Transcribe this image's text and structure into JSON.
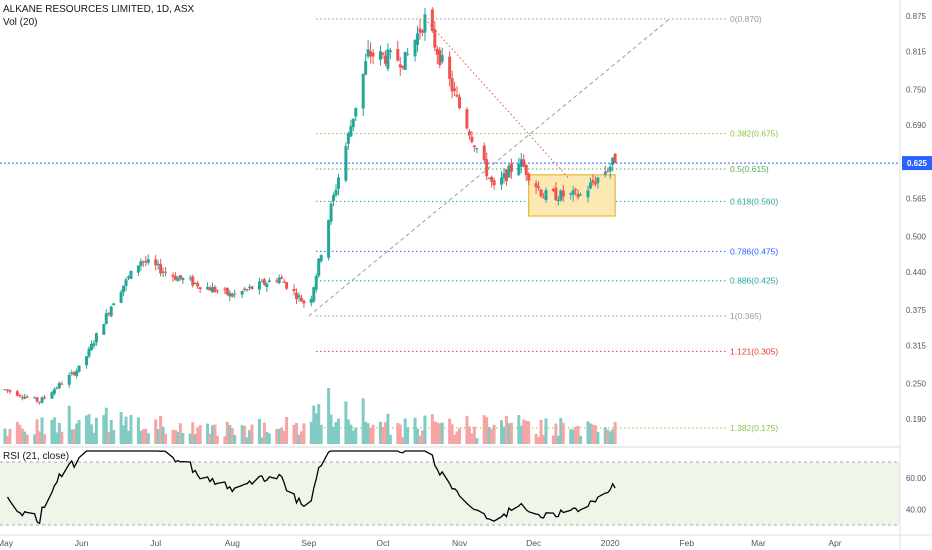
{
  "header": {
    "symbol_line": "ALKANE RESOURCES LIMITED, 1D, ASX",
    "volume_label": "Vol (20)"
  },
  "rsi": {
    "label": "RSI (21, close)",
    "ticks": [
      "60.00",
      "40.00"
    ],
    "upper_band": 70,
    "lower_band": 30
  },
  "price_axis": {
    "ticks": [
      "0.875",
      "0.815",
      "0.750",
      "0.690",
      "0.625",
      "0.565",
      "0.500",
      "0.440",
      "0.375",
      "0.315",
      "0.250",
      "0.190"
    ],
    "last_price": "0.625"
  },
  "time_axis": {
    "ticks": [
      "May",
      "Jun",
      "Jul",
      "Aug",
      "Sep",
      "Oct",
      "Nov",
      "Dec",
      "2020",
      "Feb",
      "Mar",
      "Apr"
    ]
  },
  "colors": {
    "up": "#26a69a",
    "down": "#ef5350",
    "up_vol": "#80cbc4",
    "down_vol": "#f5a6a4",
    "vol_ma": "#f4a261",
    "rsi_line": "#000000",
    "rsi_bg": "#eef6ea",
    "box_fill": "#fce8b2",
    "box_border": "#e6a91a"
  },
  "chart_data": {
    "type": "candlestick",
    "title": "ALKANE RESOURCES LIMITED, 1D, ASX",
    "x_start": "2019-05",
    "x_end": "2020-04",
    "ylim": [
      0.16,
      0.89
    ],
    "ohlc_anchors": [
      {
        "date": "2019-05-01",
        "close": 0.24
      },
      {
        "date": "2019-05-15",
        "close": 0.22
      },
      {
        "date": "2019-06-01",
        "close": 0.28
      },
      {
        "date": "2019-06-15",
        "close": 0.4
      },
      {
        "date": "2019-06-25",
        "close": 0.46
      },
      {
        "date": "2019-07-10",
        "close": 0.43
      },
      {
        "date": "2019-08-01",
        "close": 0.4
      },
      {
        "date": "2019-08-20",
        "close": 0.43
      },
      {
        "date": "2019-09-01",
        "close": 0.38
      },
      {
        "date": "2019-09-10",
        "close": 0.55
      },
      {
        "date": "2019-09-25",
        "close": 0.81
      },
      {
        "date": "2019-10-10",
        "close": 0.8
      },
      {
        "date": "2019-10-18",
        "close": 0.87
      },
      {
        "date": "2019-11-01",
        "close": 0.72
      },
      {
        "date": "2019-11-15",
        "close": 0.58
      },
      {
        "date": "2019-11-25",
        "close": 0.63
      },
      {
        "date": "2019-12-05",
        "close": 0.57
      },
      {
        "date": "2019-12-20",
        "close": 0.57
      },
      {
        "date": "2020-01-02",
        "close": 0.625
      }
    ],
    "fibonacci": [
      {
        "label": "0(0.870)",
        "value": 0.87,
        "color": "#999999"
      },
      {
        "label": "0.382(0.675)",
        "value": 0.675,
        "color": "#8bc34a"
      },
      {
        "label": "0.5(0.615)",
        "value": 0.615,
        "color": "#4caf50"
      },
      {
        "label": "0.618(0.560)",
        "value": 0.56,
        "color": "#26a69a"
      },
      {
        "label": "0.786(0.475)",
        "value": 0.475,
        "color": "#2962ff"
      },
      {
        "label": "0.886(0.425)",
        "value": 0.425,
        "color": "#26a69a"
      },
      {
        "label": "1(0.365)",
        "value": 0.365,
        "color": "#999999"
      },
      {
        "label": "1.121(0.305)",
        "value": 0.305,
        "color": "#e53935"
      },
      {
        "label": "1.382(0.175)",
        "value": 0.175,
        "color": "#8bc34a"
      }
    ],
    "last_price_line": 0.625,
    "consolidation_box": {
      "from": "2019-11-29",
      "to": "2020-01-03",
      "low": 0.535,
      "high": 0.605
    },
    "rsi_ylim": [
      25,
      78
    ]
  }
}
